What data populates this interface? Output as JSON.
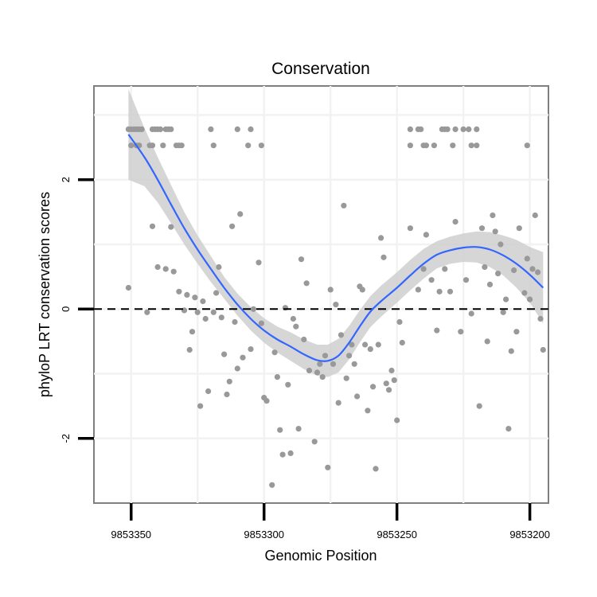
{
  "chart_data": {
    "type": "scatter",
    "title": "Conservation",
    "xlabel": "Genomic Position",
    "ylabel": "phyloP LRT conservation scores",
    "x_reversed": true,
    "xlim": [
      9853193,
      9853364
    ],
    "ylim": [
      -3.0,
      3.45
    ],
    "x_ticks": [
      9853350,
      9853300,
      9853250,
      9853200
    ],
    "x_tick_labels": [
      "9853350",
      "9853300",
      "9853250",
      "9853200"
    ],
    "y_ticks": [
      -2,
      0,
      2
    ],
    "y_tick_labels": [
      "-2",
      "0",
      "2"
    ],
    "grid": true,
    "reference_line": {
      "y": 0,
      "style": "dashed",
      "color": "#000000"
    },
    "colors": {
      "points": "#999999",
      "smooth": "#3366ff",
      "ribbon": "#cccccc",
      "border": "#7f7f7f"
    },
    "points": [
      {
        "x": 9853351,
        "y": 2.78
      },
      {
        "x": 9853350,
        "y": 2.78
      },
      {
        "x": 9853349,
        "y": 2.78
      },
      {
        "x": 9853348,
        "y": 2.78
      },
      {
        "x": 9853347,
        "y": 2.78
      },
      {
        "x": 9853346,
        "y": 2.78
      },
      {
        "x": 9853342,
        "y": 2.78
      },
      {
        "x": 9853341,
        "y": 2.78
      },
      {
        "x": 9853340,
        "y": 2.78
      },
      {
        "x": 9853339,
        "y": 2.78
      },
      {
        "x": 9853337,
        "y": 2.78
      },
      {
        "x": 9853336,
        "y": 2.78
      },
      {
        "x": 9853335,
        "y": 2.78
      },
      {
        "x": 9853320,
        "y": 2.78
      },
      {
        "x": 9853310,
        "y": 2.78
      },
      {
        "x": 9853305,
        "y": 2.78
      },
      {
        "x": 9853350,
        "y": 2.53
      },
      {
        "x": 9853348,
        "y": 2.53
      },
      {
        "x": 9853347,
        "y": 2.53
      },
      {
        "x": 9853343,
        "y": 2.53
      },
      {
        "x": 9853342,
        "y": 2.53
      },
      {
        "x": 9853338,
        "y": 2.53
      },
      {
        "x": 9853333,
        "y": 2.53
      },
      {
        "x": 9853332,
        "y": 2.53
      },
      {
        "x": 9853331,
        "y": 2.53
      },
      {
        "x": 9853319,
        "y": 2.53
      },
      {
        "x": 9853306,
        "y": 2.53
      },
      {
        "x": 9853301,
        "y": 2.53
      },
      {
        "x": 9853245,
        "y": 2.78
      },
      {
        "x": 9853242,
        "y": 2.78
      },
      {
        "x": 9853241,
        "y": 2.78
      },
      {
        "x": 9853233,
        "y": 2.78
      },
      {
        "x": 9853232,
        "y": 2.78
      },
      {
        "x": 9853231,
        "y": 2.78
      },
      {
        "x": 9853228,
        "y": 2.78
      },
      {
        "x": 9853225,
        "y": 2.78
      },
      {
        "x": 9853223,
        "y": 2.78
      },
      {
        "x": 9853220,
        "y": 2.78
      },
      {
        "x": 9853245,
        "y": 2.53
      },
      {
        "x": 9853240,
        "y": 2.53
      },
      {
        "x": 9853239,
        "y": 2.53
      },
      {
        "x": 9853236,
        "y": 2.53
      },
      {
        "x": 9853229,
        "y": 2.53
      },
      {
        "x": 9853222,
        "y": 2.53
      },
      {
        "x": 9853220,
        "y": 2.53
      },
      {
        "x": 9853201,
        "y": 2.53
      },
      {
        "x": 9853351,
        "y": 0.33
      },
      {
        "x": 9853344,
        "y": -0.05
      },
      {
        "x": 9853342,
        "y": 1.28
      },
      {
        "x": 9853340,
        "y": 0.65
      },
      {
        "x": 9853337,
        "y": 0.62
      },
      {
        "x": 9853335,
        "y": 1.27
      },
      {
        "x": 9853334,
        "y": 0.58
      },
      {
        "x": 9853332,
        "y": 0.27
      },
      {
        "x": 9853330,
        "y": -0.02
      },
      {
        "x": 9853329,
        "y": 0.22
      },
      {
        "x": 9853328,
        "y": -0.63
      },
      {
        "x": 9853327,
        "y": -0.35
      },
      {
        "x": 9853326,
        "y": 0.18
      },
      {
        "x": 9853325,
        "y": -0.05
      },
      {
        "x": 9853324,
        "y": -1.5
      },
      {
        "x": 9853323,
        "y": 0.12
      },
      {
        "x": 9853322,
        "y": -0.15
      },
      {
        "x": 9853321,
        "y": -1.27
      },
      {
        "x": 9853319,
        "y": -0.05
      },
      {
        "x": 9853318,
        "y": 0.25
      },
      {
        "x": 9853317,
        "y": 0.65
      },
      {
        "x": 9853316,
        "y": -0.13
      },
      {
        "x": 9853315,
        "y": -0.7
      },
      {
        "x": 9853314,
        "y": -1.32
      },
      {
        "x": 9853313,
        "y": -1.12
      },
      {
        "x": 9853312,
        "y": 1.28
      },
      {
        "x": 9853311,
        "y": -0.2
      },
      {
        "x": 9853310,
        "y": -0.92
      },
      {
        "x": 9853309,
        "y": 1.47
      },
      {
        "x": 9853308,
        "y": -0.75
      },
      {
        "x": 9853305,
        "y": -0.62
      },
      {
        "x": 9853304,
        "y": 0.0
      },
      {
        "x": 9853302,
        "y": 0.72
      },
      {
        "x": 9853301,
        "y": -0.22
      },
      {
        "x": 9853300,
        "y": -1.37
      },
      {
        "x": 9853299,
        "y": -1.42
      },
      {
        "x": 9853297,
        "y": -2.72
      },
      {
        "x": 9853296,
        "y": -0.67
      },
      {
        "x": 9853295,
        "y": -1.05
      },
      {
        "x": 9853294,
        "y": -1.87
      },
      {
        "x": 9853293,
        "y": -2.25
      },
      {
        "x": 9853292,
        "y": 0.02
      },
      {
        "x": 9853291,
        "y": -1.17
      },
      {
        "x": 9853290,
        "y": -2.23
      },
      {
        "x": 9853289,
        "y": -0.15
      },
      {
        "x": 9853288,
        "y": -0.27
      },
      {
        "x": 9853287,
        "y": -1.85
      },
      {
        "x": 9853286,
        "y": 0.77
      },
      {
        "x": 9853285,
        "y": -0.47
      },
      {
        "x": 9853284,
        "y": 0.4
      },
      {
        "x": 9853283,
        "y": -0.95
      },
      {
        "x": 9853281,
        "y": -2.05
      },
      {
        "x": 9853280,
        "y": -0.98
      },
      {
        "x": 9853279,
        "y": -0.85
      },
      {
        "x": 9853278,
        "y": -1.05
      },
      {
        "x": 9853277,
        "y": -0.72
      },
      {
        "x": 9853276,
        "y": -2.45
      },
      {
        "x": 9853275,
        "y": 0.3
      },
      {
        "x": 9853274,
        "y": -0.85
      },
      {
        "x": 9853273,
        "y": 0.07
      },
      {
        "x": 9853272,
        "y": -1.45
      },
      {
        "x": 9853271,
        "y": -0.4
      },
      {
        "x": 9853270,
        "y": 1.6
      },
      {
        "x": 9853269,
        "y": -1.07
      },
      {
        "x": 9853268,
        "y": -0.72
      },
      {
        "x": 9853267,
        "y": -0.55
      },
      {
        "x": 9853266,
        "y": -0.85
      },
      {
        "x": 9853265,
        "y": -1.35
      },
      {
        "x": 9853264,
        "y": 0.35
      },
      {
        "x": 9853263,
        "y": 0.3
      },
      {
        "x": 9853262,
        "y": -0.55
      },
      {
        "x": 9853261,
        "y": -1.57
      },
      {
        "x": 9853260,
        "y": -0.62
      },
      {
        "x": 9853259,
        "y": -1.2
      },
      {
        "x": 9853258,
        "y": -2.47
      },
      {
        "x": 9853257,
        "y": -0.55
      },
      {
        "x": 9853256,
        "y": 1.1
      },
      {
        "x": 9853255,
        "y": 0.8
      },
      {
        "x": 9853254,
        "y": -1.15
      },
      {
        "x": 9853253,
        "y": -1.25
      },
      {
        "x": 9853252,
        "y": -0.95
      },
      {
        "x": 9853251,
        "y": -1.1
      },
      {
        "x": 9853250,
        "y": -1.72
      },
      {
        "x": 9853249,
        "y": -0.2
      },
      {
        "x": 9853248,
        "y": -0.52
      },
      {
        "x": 9853245,
        "y": 1.25
      },
      {
        "x": 9853242,
        "y": 0.3
      },
      {
        "x": 9853240,
        "y": 0.62
      },
      {
        "x": 9853239,
        "y": 1.15
      },
      {
        "x": 9853237,
        "y": 0.45
      },
      {
        "x": 9853235,
        "y": -0.33
      },
      {
        "x": 9853234,
        "y": 0.27
      },
      {
        "x": 9853232,
        "y": 0.62
      },
      {
        "x": 9853230,
        "y": 0.27
      },
      {
        "x": 9853228,
        "y": 1.35
      },
      {
        "x": 9853226,
        "y": -0.35
      },
      {
        "x": 9853224,
        "y": 0.45
      },
      {
        "x": 9853222,
        "y": -0.07
      },
      {
        "x": 9853219,
        "y": -1.5
      },
      {
        "x": 9853218,
        "y": 1.25
      },
      {
        "x": 9853217,
        "y": 0.65
      },
      {
        "x": 9853216,
        "y": -0.5
      },
      {
        "x": 9853215,
        "y": 0.38
      },
      {
        "x": 9853214,
        "y": 1.45
      },
      {
        "x": 9853213,
        "y": 1.2
      },
      {
        "x": 9853212,
        "y": 0.55
      },
      {
        "x": 9853211,
        "y": 1.0
      },
      {
        "x": 9853210,
        "y": -0.05
      },
      {
        "x": 9853209,
        "y": 0.15
      },
      {
        "x": 9853208,
        "y": -1.85
      },
      {
        "x": 9853207,
        "y": -0.65
      },
      {
        "x": 9853206,
        "y": 0.6
      },
      {
        "x": 9853205,
        "y": -0.35
      },
      {
        "x": 9853204,
        "y": 1.25
      },
      {
        "x": 9853202,
        "y": 0.25
      },
      {
        "x": 9853201,
        "y": 0.78
      },
      {
        "x": 9853200,
        "y": 0.15
      },
      {
        "x": 9853199,
        "y": 0.62
      },
      {
        "x": 9853198,
        "y": 1.45
      },
      {
        "x": 9853197,
        "y": 0.57
      },
      {
        "x": 9853196,
        "y": -0.15
      },
      {
        "x": 9853195,
        "y": -0.63
      }
    ],
    "smooth": [
      {
        "x": 9853351,
        "y": 2.7,
        "lo": 2.0,
        "hi": 3.4
      },
      {
        "x": 9853345,
        "y": 2.35,
        "lo": 1.9,
        "hi": 2.8
      },
      {
        "x": 9853340,
        "y": 2.0,
        "lo": 1.65,
        "hi": 2.35
      },
      {
        "x": 9853335,
        "y": 1.62,
        "lo": 1.33,
        "hi": 1.92
      },
      {
        "x": 9853330,
        "y": 1.25,
        "lo": 1.0,
        "hi": 1.5
      },
      {
        "x": 9853325,
        "y": 0.92,
        "lo": 0.7,
        "hi": 1.14
      },
      {
        "x": 9853320,
        "y": 0.62,
        "lo": 0.42,
        "hi": 0.82
      },
      {
        "x": 9853315,
        "y": 0.33,
        "lo": 0.16,
        "hi": 0.5
      },
      {
        "x": 9853310,
        "y": 0.07,
        "lo": -0.1,
        "hi": 0.24
      },
      {
        "x": 9853305,
        "y": -0.15,
        "lo": -0.33,
        "hi": 0.03
      },
      {
        "x": 9853300,
        "y": -0.33,
        "lo": -0.52,
        "hi": -0.14
      },
      {
        "x": 9853295,
        "y": -0.47,
        "lo": -0.67,
        "hi": -0.27
      },
      {
        "x": 9853290,
        "y": -0.58,
        "lo": -0.8,
        "hi": -0.36
      },
      {
        "x": 9853285,
        "y": -0.7,
        "lo": -0.93,
        "hi": -0.47
      },
      {
        "x": 9853280,
        "y": -0.79,
        "lo": -1.03,
        "hi": -0.55
      },
      {
        "x": 9853276,
        "y": -0.8,
        "lo": -1.05,
        "hi": -0.55
      },
      {
        "x": 9853272,
        "y": -0.72,
        "lo": -0.98,
        "hi": -0.46
      },
      {
        "x": 9853268,
        "y": -0.52,
        "lo": -0.78,
        "hi": -0.26
      },
      {
        "x": 9853264,
        "y": -0.27,
        "lo": -0.52,
        "hi": -0.02
      },
      {
        "x": 9853260,
        "y": -0.04,
        "lo": -0.28,
        "hi": 0.2
      },
      {
        "x": 9853256,
        "y": 0.12,
        "lo": -0.12,
        "hi": 0.36
      },
      {
        "x": 9853250,
        "y": 0.33,
        "lo": 0.1,
        "hi": 0.57
      },
      {
        "x": 9853245,
        "y": 0.52,
        "lo": 0.29,
        "hi": 0.76
      },
      {
        "x": 9853240,
        "y": 0.7,
        "lo": 0.47,
        "hi": 0.93
      },
      {
        "x": 9853235,
        "y": 0.84,
        "lo": 0.63,
        "hi": 1.05
      },
      {
        "x": 9853230,
        "y": 0.91,
        "lo": 0.7,
        "hi": 1.12
      },
      {
        "x": 9853225,
        "y": 0.95,
        "lo": 0.73,
        "hi": 1.17
      },
      {
        "x": 9853220,
        "y": 0.96,
        "lo": 0.72,
        "hi": 1.2
      },
      {
        "x": 9853215,
        "y": 0.92,
        "lo": 0.65,
        "hi": 1.19
      },
      {
        "x": 9853210,
        "y": 0.83,
        "lo": 0.52,
        "hi": 1.14
      },
      {
        "x": 9853205,
        "y": 0.7,
        "lo": 0.33,
        "hi": 1.07
      },
      {
        "x": 9853200,
        "y": 0.53,
        "lo": 0.1,
        "hi": 0.96
      },
      {
        "x": 9853195,
        "y": 0.33,
        "lo": -0.22,
        "hi": 0.88
      }
    ]
  }
}
